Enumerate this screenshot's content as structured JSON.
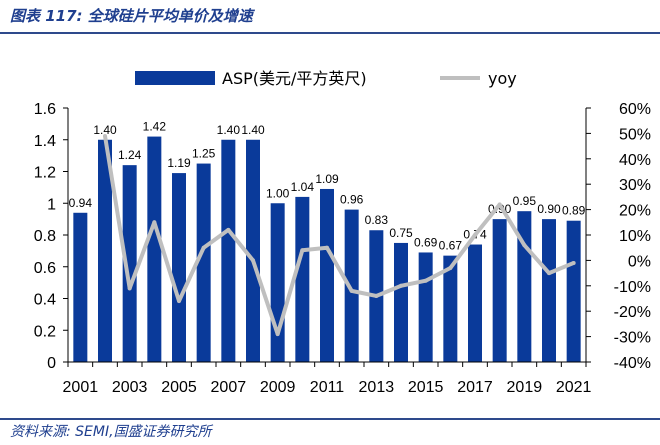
{
  "figure": {
    "number": "图表 117:",
    "title": "全球硅片平均单价及增速",
    "source_label": "资料来源:",
    "source_text": "SEMI,国盛证券研究所"
  },
  "colors": {
    "bar": "#0a3a9a",
    "line": "#bfbfbf",
    "title": "#1f3f8f",
    "rule": "#2e4a8c"
  },
  "chart_data": {
    "type": "bar",
    "x": [
      "2001",
      "2002",
      "2003",
      "2004",
      "2005",
      "2006",
      "2007",
      "2008",
      "2009",
      "2010",
      "2011",
      "2012",
      "2013",
      "2014",
      "2015",
      "2016",
      "2017",
      "2018",
      "2019",
      "2020",
      "2021"
    ],
    "x_tick_labels": [
      "2001",
      "2003",
      "2005",
      "2007",
      "2009",
      "2011",
      "2013",
      "2015",
      "2017",
      "2019",
      "2021"
    ],
    "series": [
      {
        "name": "ASP(美元/平方英尺)",
        "type": "bar",
        "axis": "left",
        "values": [
          0.94,
          1.4,
          1.24,
          1.42,
          1.19,
          1.25,
          1.4,
          1.4,
          1.0,
          1.04,
          1.09,
          0.96,
          0.83,
          0.75,
          0.69,
          0.67,
          0.74,
          0.9,
          0.95,
          0.9,
          0.89
        ],
        "labels": [
          "0.94",
          "1.40",
          "1.24",
          "1.42",
          "1.19",
          "1.25",
          "1.40",
          "1.40",
          "1.00",
          "1.04",
          "1.09",
          "0.96",
          "0.83",
          "0.75",
          "0.69",
          "0.67",
          "0.74",
          "0.90",
          "0.95",
          "0.90",
          "0.89"
        ]
      },
      {
        "name": "yoy",
        "type": "line",
        "axis": "right",
        "values": [
          null,
          49,
          -11,
          15,
          -16,
          5,
          12,
          0,
          -29,
          4,
          5,
          -12,
          -14,
          -10,
          -8,
          -3,
          10,
          22,
          6,
          -5,
          -1
        ]
      }
    ],
    "y_left": {
      "min": 0,
      "max": 1.6,
      "ticks": [
        "0",
        "0.2",
        "0.4",
        "0.6",
        "0.8",
        "1",
        "1.2",
        "1.4",
        "1.6"
      ]
    },
    "y_right": {
      "min": -40,
      "max": 60,
      "ticks": [
        "-40%",
        "-30%",
        "-20%",
        "-10%",
        "0%",
        "10%",
        "20%",
        "30%",
        "40%",
        "50%",
        "60%"
      ]
    },
    "legend_position": "top",
    "grid": false
  }
}
